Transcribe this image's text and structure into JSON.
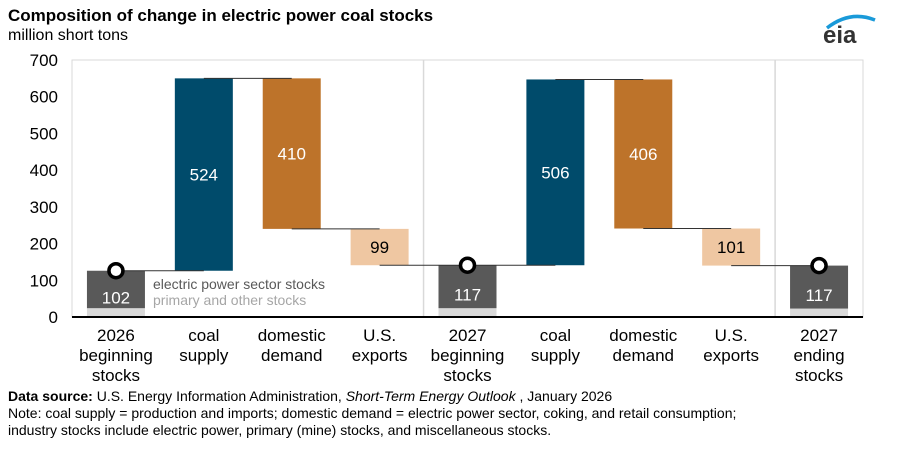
{
  "header": {
    "title": "Composition of change in electric power coal stocks",
    "subtitle": "million short tons",
    "logo_text": "eia"
  },
  "chart_data": {
    "type": "waterfall",
    "title": "Composition of change in electric power coal stocks",
    "ylabel": "million short tons",
    "ylim": [
      0,
      700
    ],
    "yticks": [
      0,
      100,
      200,
      300,
      400,
      500,
      600,
      700
    ],
    "grid": false,
    "categories": [
      "2026\nbeginning\nstocks",
      "coal\nsupply",
      "domestic\ndemand",
      "U.S.\nexports",
      "2027\nbeginning\nstocks",
      "coal\nsupply",
      "domestic\ndemand",
      "U.S.\nexports",
      "2027\nending\nstocks"
    ],
    "bars": [
      {
        "kind": "stock",
        "electric_power": 102,
        "primary_other": 24,
        "label": "102"
      },
      {
        "kind": "increase",
        "from": 126,
        "to": 650,
        "value": 524,
        "label": "524"
      },
      {
        "kind": "decrease",
        "from": 650,
        "to": 240,
        "value": 410,
        "label": "410"
      },
      {
        "kind": "decrease_exports",
        "from": 240,
        "to": 141,
        "value": 99,
        "label": "99"
      },
      {
        "kind": "stock",
        "electric_power": 117,
        "primary_other": 24,
        "label": "117"
      },
      {
        "kind": "increase",
        "from": 141,
        "to": 647,
        "value": 506,
        "label": "506"
      },
      {
        "kind": "decrease",
        "from": 647,
        "to": 241,
        "value": 406,
        "label": "406"
      },
      {
        "kind": "decrease_exports",
        "from": 241,
        "to": 140,
        "value": 101,
        "label": "101"
      },
      {
        "kind": "stock",
        "electric_power": 117,
        "primary_other": 23,
        "label": "117"
      }
    ],
    "legend": {
      "electric_power": "electric power sector stocks",
      "primary_other": "primary and other stocks"
    },
    "colors": {
      "electric_power": "#595959",
      "primary_other": "#d9d9d9",
      "increase": "#004b6b",
      "decrease": "#bd732a",
      "decrease_exports": "#efc7a2",
      "connector": "#333333",
      "separator": "#d9d9d9"
    }
  },
  "footer": {
    "source_label": "Data source:",
    "source_text": " U.S. Energy Information Administration, ",
    "source_italic": "Short-Term Energy Outlook",
    "source_date": " , January 2026",
    "note1": "Note: coal supply = production and imports; domestic demand = electric power sector, coking, and retail consumption;",
    "note2": "industry stocks include electric power, primary (mine) stocks, and miscellaneous stocks."
  }
}
